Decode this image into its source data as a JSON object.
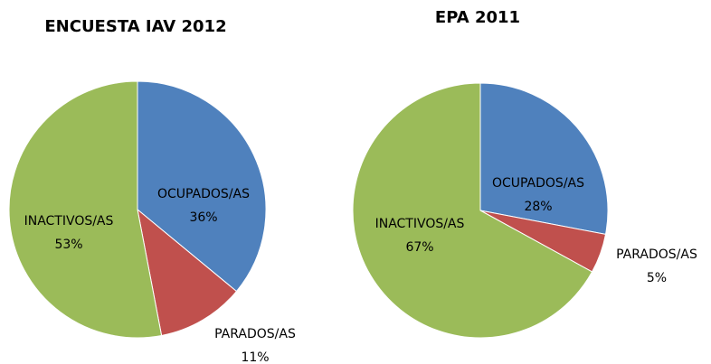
{
  "chart_data": [
    {
      "type": "pie",
      "title": "ENCUESTA IAV 2012",
      "categories": [
        "OCUPADOS/AS",
        "PARADOS/AS",
        "INACTIVOS/AS"
      ],
      "values": [
        36,
        11,
        53
      ],
      "value_labels": [
        "36%",
        "11%",
        "53%"
      ],
      "colors": [
        "#4f81bd",
        "#c0504d",
        "#9bbb59"
      ]
    },
    {
      "type": "pie",
      "title": "EPA 2011",
      "categories": [
        "OCUPADOS/AS",
        "PARADOS/AS",
        "INACTIVOS/AS"
      ],
      "values": [
        28,
        5,
        67
      ],
      "value_labels": [
        "28%",
        "5%",
        "67%"
      ],
      "colors": [
        "#4f81bd",
        "#c0504d",
        "#9bbb59"
      ]
    }
  ]
}
